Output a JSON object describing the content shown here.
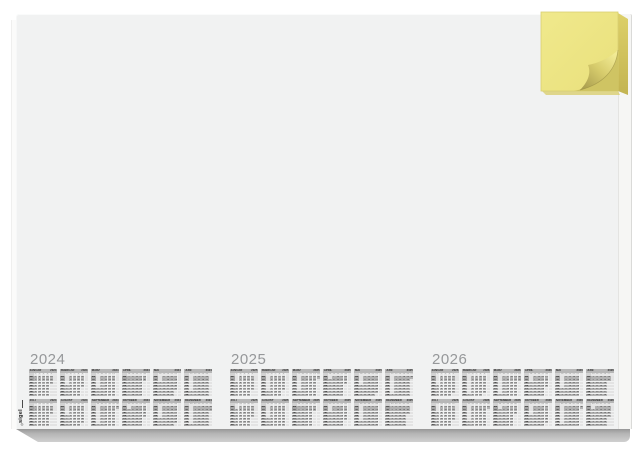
{
  "product": {
    "brand": "sigel",
    "registered_mark": "®"
  },
  "desk_pad": {
    "surface_color": "#f1f2f2",
    "bottom_edge_color": "#b5b5b5",
    "side_edge_color": "#f6f6f4"
  },
  "sticky_pad": {
    "face_color": "#ece47f",
    "side_edge_color": "#cfc15c",
    "curl_shadow_color": "#a89c4e"
  },
  "calendar": {
    "kw_label": "KW",
    "weekday_labels": [
      "Mo",
      "Di",
      "Mi",
      "Do",
      "Fr",
      "Sa",
      "So"
    ],
    "years": [
      {
        "year": "2024",
        "months": [
          {
            "name": "JANUAR",
            "first_dow": 0,
            "days": 31,
            "kw_start": 1
          },
          {
            "name": "FEBRUAR",
            "first_dow": 3,
            "days": 29,
            "kw_start": 5
          },
          {
            "name": "MÄRZ",
            "first_dow": 4,
            "days": 31,
            "kw_start": 9
          },
          {
            "name": "APRIL",
            "first_dow": 0,
            "days": 30,
            "kw_start": 14
          },
          {
            "name": "MAI",
            "first_dow": 2,
            "days": 31,
            "kw_start": 18
          },
          {
            "name": "JUNI",
            "first_dow": 5,
            "days": 30,
            "kw_start": 22
          },
          {
            "name": "JULI",
            "first_dow": 0,
            "days": 31,
            "kw_start": 27
          },
          {
            "name": "AUGUST",
            "first_dow": 3,
            "days": 31,
            "kw_start": 31
          },
          {
            "name": "SEPTEMBER",
            "first_dow": 6,
            "days": 30,
            "kw_start": 35
          },
          {
            "name": "OKTOBER",
            "first_dow": 1,
            "days": 31,
            "kw_start": 40
          },
          {
            "name": "NOVEMBER",
            "first_dow": 4,
            "days": 30,
            "kw_start": 44
          },
          {
            "name": "DEZEMBER",
            "first_dow": 6,
            "days": 31,
            "kw_start": 48
          }
        ]
      },
      {
        "year": "2025",
        "months": [
          {
            "name": "JANUAR",
            "first_dow": 2,
            "days": 31,
            "kw_start": 1
          },
          {
            "name": "FEBRUAR",
            "first_dow": 5,
            "days": 28,
            "kw_start": 5
          },
          {
            "name": "MÄRZ",
            "first_dow": 5,
            "days": 31,
            "kw_start": 9
          },
          {
            "name": "APRIL",
            "first_dow": 1,
            "days": 30,
            "kw_start": 14
          },
          {
            "name": "MAI",
            "first_dow": 3,
            "days": 31,
            "kw_start": 18
          },
          {
            "name": "JUNI",
            "first_dow": 6,
            "days": 30,
            "kw_start": 22
          },
          {
            "name": "JULI",
            "first_dow": 1,
            "days": 31,
            "kw_start": 27
          },
          {
            "name": "AUGUST",
            "first_dow": 4,
            "days": 31,
            "kw_start": 31
          },
          {
            "name": "SEPTEMBER",
            "first_dow": 0,
            "days": 30,
            "kw_start": 36
          },
          {
            "name": "OKTOBER",
            "first_dow": 2,
            "days": 31,
            "kw_start": 40
          },
          {
            "name": "NOVEMBER",
            "first_dow": 5,
            "days": 30,
            "kw_start": 44
          },
          {
            "name": "DEZEMBER",
            "first_dow": 0,
            "days": 31,
            "kw_start": 49
          }
        ]
      },
      {
        "year": "2026",
        "months": [
          {
            "name": "JANUAR",
            "first_dow": 3,
            "days": 31,
            "kw_start": 1
          },
          {
            "name": "FEBRUAR",
            "first_dow": 6,
            "days": 28,
            "kw_start": 5
          },
          {
            "name": "MÄRZ",
            "first_dow": 6,
            "days": 31,
            "kw_start": 9
          },
          {
            "name": "APRIL",
            "first_dow": 2,
            "days": 30,
            "kw_start": 14
          },
          {
            "name": "MAI",
            "first_dow": 4,
            "days": 31,
            "kw_start": 18
          },
          {
            "name": "JUNI",
            "first_dow": 0,
            "days": 30,
            "kw_start": 23
          },
          {
            "name": "JULI",
            "first_dow": 2,
            "days": 31,
            "kw_start": 27
          },
          {
            "name": "AUGUST",
            "first_dow": 5,
            "days": 31,
            "kw_start": 31
          },
          {
            "name": "SEPTEMBER",
            "first_dow": 1,
            "days": 30,
            "kw_start": 36
          },
          {
            "name": "OKTOBER",
            "first_dow": 3,
            "days": 31,
            "kw_start": 40
          },
          {
            "name": "NOVEMBER",
            "first_dow": 6,
            "days": 30,
            "kw_start": 44
          },
          {
            "name": "DEZEMBER",
            "first_dow": 1,
            "days": 31,
            "kw_start": 49
          }
        ]
      }
    ]
  }
}
